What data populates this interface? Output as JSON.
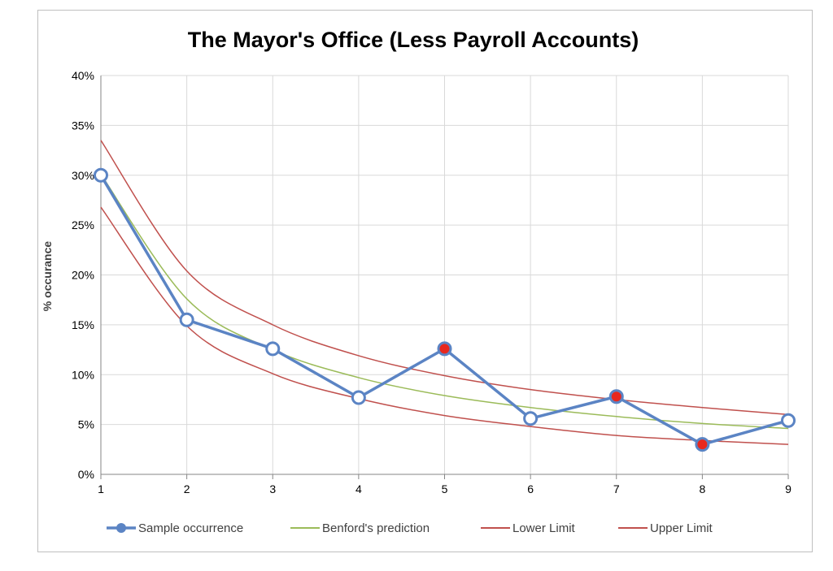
{
  "chart_data": {
    "type": "line",
    "title": "The Mayor's Office (Less Payroll Accounts)",
    "xlabel": "",
    "ylabel": "% occurance",
    "x": [
      1,
      2,
      3,
      4,
      5,
      6,
      7,
      8,
      9
    ],
    "x_tick_labels": [
      "1",
      "2",
      "3",
      "4",
      "5",
      "6",
      "7",
      "8",
      "9"
    ],
    "ylim": [
      0,
      40
    ],
    "y_tick_labels": [
      "0%",
      "5%",
      "10%",
      "15%",
      "20%",
      "25%",
      "30%",
      "35%",
      "40%"
    ],
    "grid": true,
    "legend_position": "bottom",
    "series": [
      {
        "name": "Sample occurrence",
        "color": "#5b84c4",
        "values": [
          30.0,
          15.5,
          12.6,
          7.7,
          12.6,
          5.6,
          7.8,
          3.0,
          5.4
        ],
        "flagged": [
          false,
          false,
          false,
          false,
          true,
          false,
          true,
          true,
          false
        ],
        "flag_color": "#e8281e"
      },
      {
        "name": "Benford's prediction",
        "color": "#9bbb59",
        "values": [
          30.1,
          17.6,
          12.5,
          9.7,
          7.9,
          6.7,
          5.8,
          5.1,
          4.6
        ]
      },
      {
        "name": "Lower Limit",
        "color": "#c0504d",
        "values": [
          26.8,
          14.9,
          10.1,
          7.6,
          5.9,
          4.8,
          3.9,
          3.4,
          3.0
        ]
      },
      {
        "name": "Upper Limit",
        "color": "#c0504d",
        "values": [
          33.5,
          20.4,
          15.0,
          11.9,
          9.9,
          8.5,
          7.5,
          6.7,
          6.0
        ]
      }
    ]
  }
}
